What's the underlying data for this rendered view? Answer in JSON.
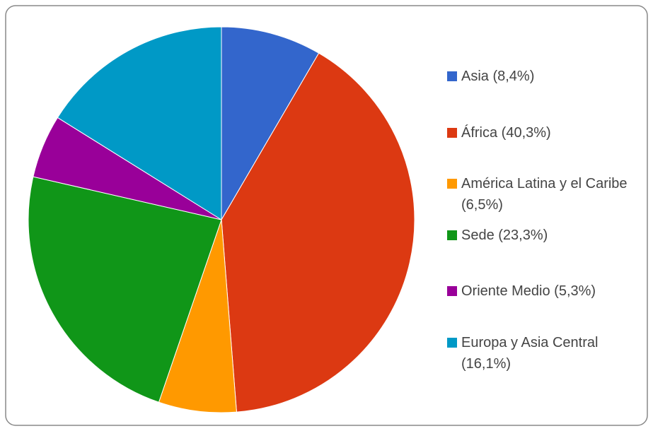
{
  "chart_data": {
    "type": "pie",
    "categories": [
      "Asia (8,4%)",
      "África (40,3%)",
      "América Latina y el Caribe (6,5%)",
      "Sede (23,3%)",
      "Oriente Medio (5,3%)",
      "Europa y Asia Central (16,1%)"
    ],
    "values": [
      8.4,
      40.3,
      6.5,
      23.3,
      5.3,
      16.1
    ],
    "colors": [
      "#3366cc",
      "#dc3912",
      "#ff9900",
      "#109618",
      "#990099",
      "#0099c6"
    ],
    "legend": "right"
  }
}
